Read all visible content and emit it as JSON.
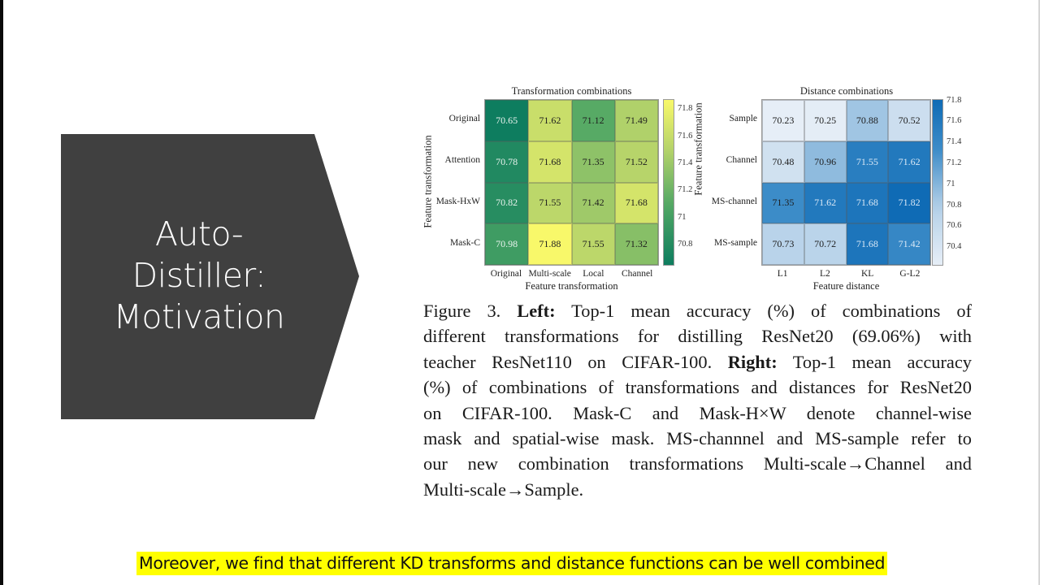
{
  "slide": {
    "title_lines": [
      "Auto-",
      "Distiller:",
      "Motivation"
    ],
    "chevron_color": "#404040",
    "subtitle": "Moreover, we find that different KD transforms and distance functions can be well combined",
    "subtitle_highlight": "#ffff00"
  },
  "figure": {
    "caption_lines": [
      {
        "parts": [
          {
            "t": "Figure 3. ",
            "b": false
          },
          {
            "t": "Left:",
            "b": true
          },
          {
            "t": " Top-1 mean accuracy (%) of combinations of",
            "b": false
          }
        ]
      },
      {
        "parts": [
          {
            "t": "different transformations for distilling ResNet20 (69.06%) with",
            "b": false
          }
        ]
      },
      {
        "parts": [
          {
            "t": "teacher ResNet110 on CIFAR-100. ",
            "b": false
          },
          {
            "t": "Right:",
            "b": true
          },
          {
            "t": " Top-1 mean accuracy",
            "b": false
          }
        ]
      },
      {
        "parts": [
          {
            "t": "(%) of combinations of transformations and distances for ResNet20",
            "b": false
          }
        ]
      },
      {
        "parts": [
          {
            "t": "on CIFAR-100.  Mask-C and Mask-H×W denote channel-wise",
            "b": false
          }
        ]
      },
      {
        "parts": [
          {
            "t": "mask and spatial-wise mask. MS-channnel and MS-sample refer to",
            "b": false
          }
        ]
      },
      {
        "parts": [
          {
            "t": "our new combination transformations Multi-scale→Channel and",
            "b": false
          }
        ]
      },
      {
        "parts": [
          {
            "t": "Multi-scale→Sample.",
            "b": false
          }
        ]
      }
    ]
  },
  "chart_data": [
    {
      "type": "heatmap",
      "title": "Transformation combinations",
      "xlabel": "Feature transformation",
      "ylabel": "Feature transformation",
      "colorbar_label": "Feature transformation",
      "x": [
        "Original",
        "Multi-scale",
        "Local",
        "Channel"
      ],
      "y": [
        "Original",
        "Attention",
        "Mask-HxW",
        "Mask-C"
      ],
      "values": [
        [
          70.65,
          71.62,
          71.12,
          71.49
        ],
        [
          70.78,
          71.68,
          71.35,
          71.52
        ],
        [
          70.82,
          71.55,
          71.42,
          71.68
        ],
        [
          70.98,
          71.88,
          71.55,
          71.32
        ]
      ],
      "colormap": "summer (green → yellow)",
      "colorbar_ticks": [
        "71.8",
        "71.6",
        "71.4",
        "71.2",
        "71",
        "70.8"
      ],
      "vmin": 70.65,
      "vmax": 71.88,
      "color_low": "#0e7d5f",
      "color_high": "#f8f86a"
    },
    {
      "type": "heatmap",
      "title": "Distance combinations",
      "xlabel": "Feature distance",
      "ylabel": "Feature transformation",
      "x": [
        "L1",
        "L2",
        "KL",
        "G-L2"
      ],
      "y": [
        "Sample",
        "Channel",
        "MS-channel",
        "MS-sample"
      ],
      "values": [
        [
          70.23,
          70.25,
          70.88,
          70.52
        ],
        [
          70.48,
          70.96,
          71.55,
          71.62
        ],
        [
          71.35,
          71.62,
          71.68,
          71.82
        ],
        [
          70.73,
          70.72,
          71.68,
          71.42
        ]
      ],
      "colormap": "blues (white → blue)",
      "colorbar_ticks": [
        "71.8",
        "71.6",
        "71.4",
        "71.2",
        "71",
        "70.8",
        "70.6",
        "70.4"
      ],
      "vmin": 70.23,
      "vmax": 71.82,
      "color_low": "#e6eef7",
      "color_high": "#0f6bb5"
    }
  ]
}
